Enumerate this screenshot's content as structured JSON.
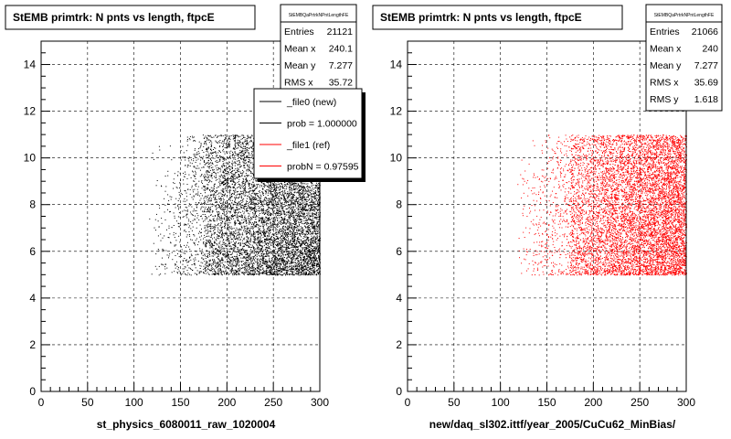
{
  "chart_data": [
    {
      "type": "scatter",
      "title": "StEMB primtrk: N pnts vs length, ftpcE",
      "xlabel": "st_physics_6080011_raw_1020004",
      "ylabel": "",
      "xlim": [
        0,
        300
      ],
      "ylim": [
        0,
        15
      ],
      "xticks": [
        "0",
        "50",
        "100",
        "150",
        "200",
        "250",
        "300"
      ],
      "yticks": [
        "0",
        "2",
        "4",
        "6",
        "8",
        "10",
        "12",
        "14"
      ],
      "grid": true,
      "marker_color": "#000000",
      "stats_box": {
        "name": "StEMBQaPrtrkNPntLengthFE",
        "rows": [
          {
            "label": "Entries",
            "value": "21121"
          },
          {
            "label": "Mean x",
            "value": "240.1"
          },
          {
            "label": "Mean y",
            "value": "7.277"
          },
          {
            "label": "RMS x",
            "value": "35.72"
          }
        ]
      },
      "legend": {
        "placement": "top-right",
        "entries": [
          {
            "label": "_file0 (new)",
            "color": "#000000"
          },
          {
            "label": "prob = 1.000000",
            "color": "#000000"
          },
          {
            "label": "_file1 (ref)",
            "color": "#ff0000"
          },
          {
            "label": "probN = 0.97595",
            "color": "#ff0000"
          }
        ]
      },
      "distribution": {
        "x_range": [
          115,
          300
        ],
        "y_range": [
          5,
          11
        ],
        "mean_x": 240.1,
        "mean_y": 7.277,
        "rms_x": 35.72
      }
    },
    {
      "type": "scatter",
      "title": "StEMB primtrk: N pnts vs length, ftpcE",
      "xlabel": "new/daq_sl302.ittf/year_2005/CuCu62_MinBias/",
      "ylabel": "",
      "xlim": [
        0,
        300
      ],
      "ylim": [
        0,
        15
      ],
      "xticks": [
        "0",
        "50",
        "100",
        "150",
        "200",
        "250",
        "300"
      ],
      "yticks": [
        "0",
        "2",
        "4",
        "6",
        "8",
        "10",
        "12",
        "14"
      ],
      "grid": true,
      "marker_color": "#ff0000",
      "stats_box": {
        "name": "StEMBQaPrtrkNPntLengthFE",
        "rows": [
          {
            "label": "Entries",
            "value": "21066"
          },
          {
            "label": "Mean x",
            "value": "240"
          },
          {
            "label": "Mean y",
            "value": "7.277"
          },
          {
            "label": "RMS x",
            "value": "35.69"
          },
          {
            "label": "RMS y",
            "value": "1.618"
          }
        ]
      },
      "distribution": {
        "x_range": [
          115,
          300
        ],
        "y_range": [
          5,
          11
        ],
        "mean_x": 240,
        "mean_y": 7.277,
        "rms_x": 35.69,
        "rms_y": 1.618
      }
    }
  ]
}
